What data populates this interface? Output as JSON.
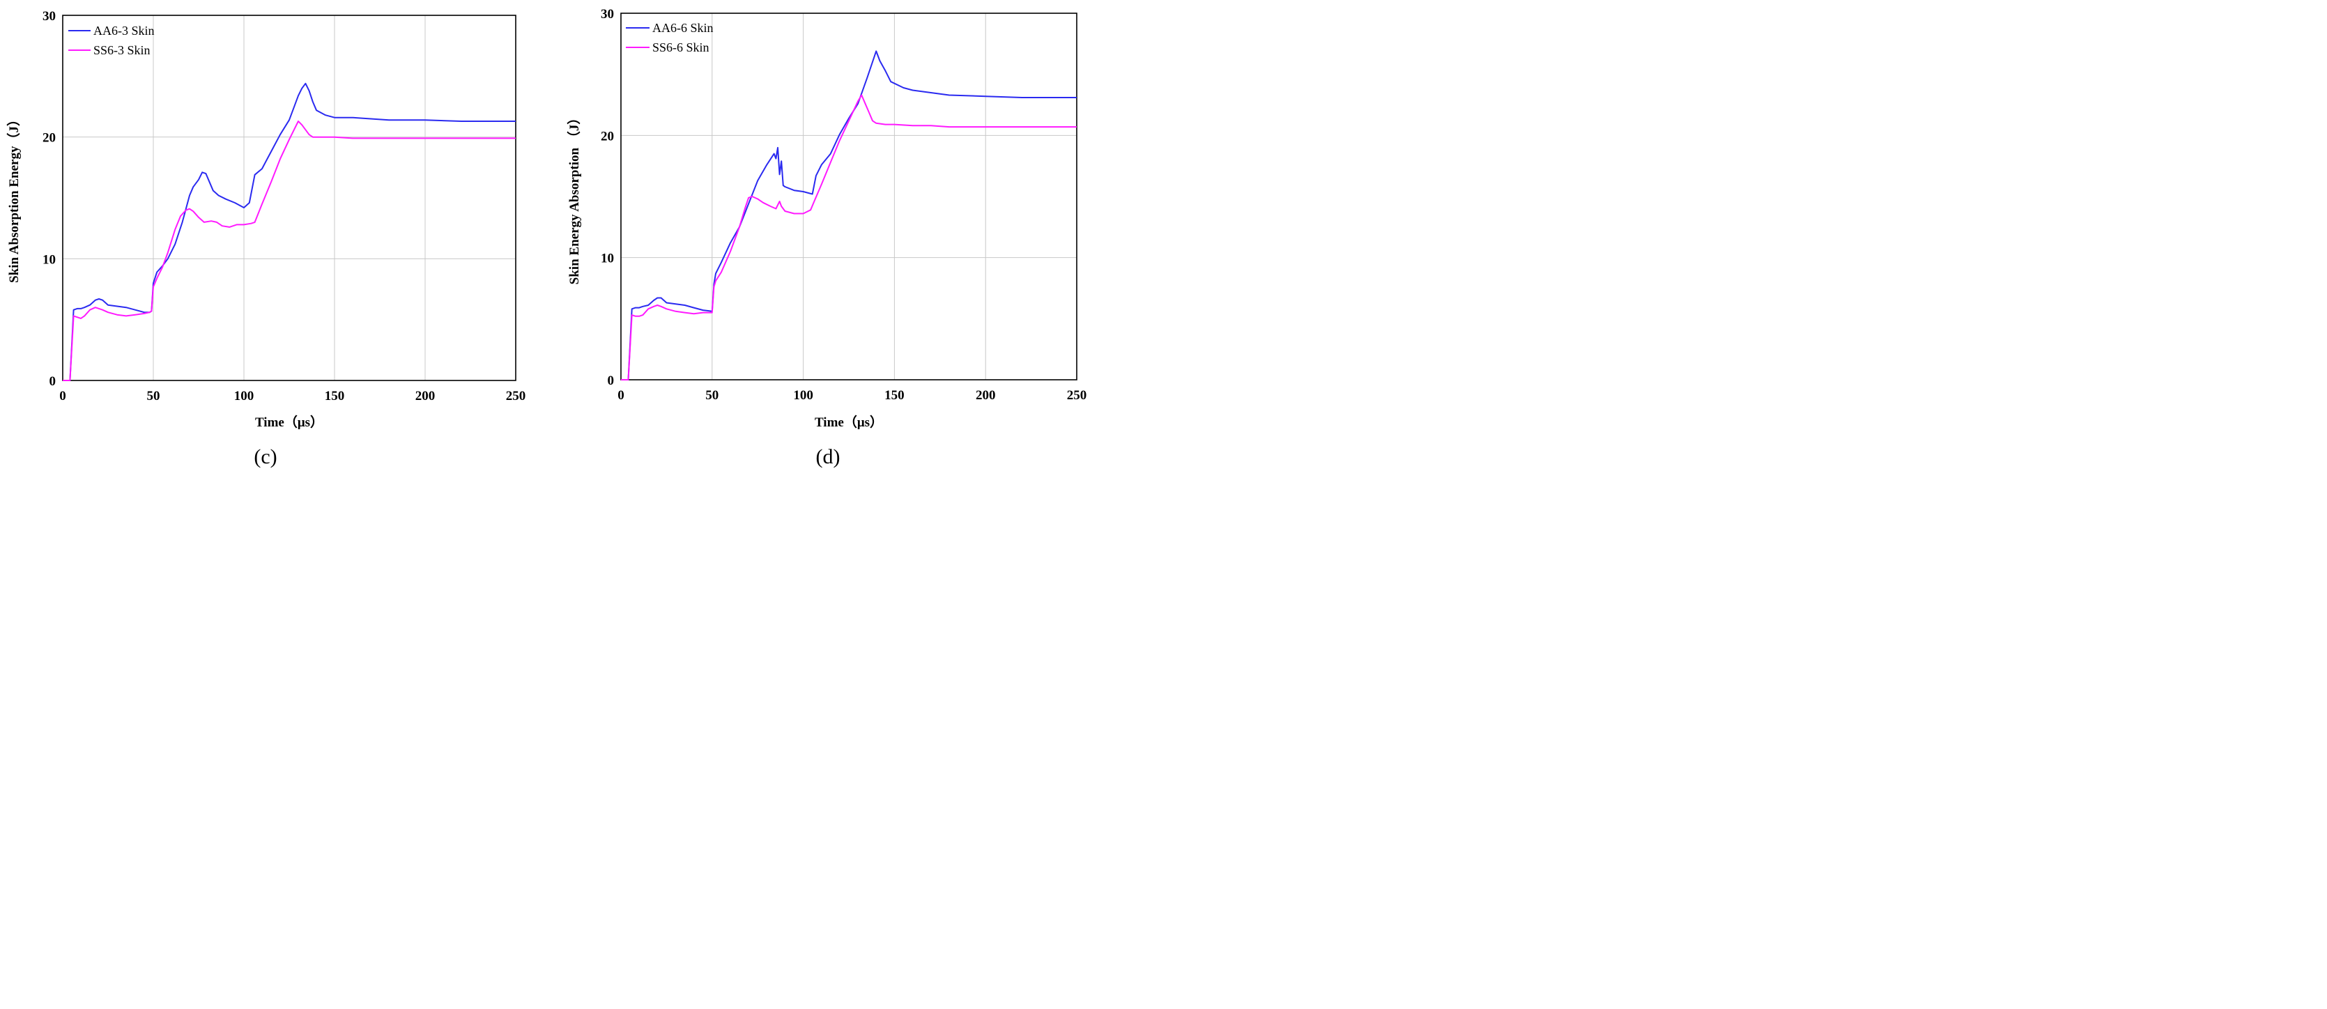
{
  "chart_data": [
    {
      "type": "line",
      "panel_label": "(c)",
      "xlabel": "Time（μs）",
      "ylabel": "Skin Absorption Energy（J）",
      "xlim": [
        0,
        250
      ],
      "ylim": [
        0,
        30
      ],
      "xticks": [
        "0",
        "50",
        "100",
        "150",
        "200",
        "250"
      ],
      "yticks": [
        "0",
        "10",
        "20",
        "30"
      ],
      "grid": true,
      "legend_position": "top-left",
      "series": [
        {
          "name": "AA6-3 Skin",
          "color": "#2a2af0",
          "x": [
            0,
            4,
            6,
            8,
            10,
            12,
            15,
            18,
            20,
            22,
            25,
            30,
            35,
            40,
            45,
            48,
            49,
            50,
            52,
            55,
            58,
            62,
            66,
            70,
            72,
            75,
            77,
            79,
            81,
            83,
            86,
            90,
            95,
            100,
            103,
            106,
            110,
            115,
            120,
            125,
            128,
            130,
            132,
            134,
            136,
            138,
            140,
            145,
            150,
            160,
            170,
            180,
            200,
            220,
            250
          ],
          "y": [
            0,
            0,
            5.8,
            5.9,
            5.9,
            6.0,
            6.2,
            6.6,
            6.7,
            6.6,
            6.2,
            6.1,
            6.0,
            5.8,
            5.6,
            5.6,
            5.7,
            8.0,
            8.9,
            9.4,
            10.0,
            11.2,
            13.0,
            15.2,
            15.9,
            16.5,
            17.1,
            17.0,
            16.3,
            15.6,
            15.2,
            14.9,
            14.6,
            14.2,
            14.6,
            16.9,
            17.4,
            18.8,
            20.2,
            21.4,
            22.6,
            23.4,
            24.0,
            24.4,
            23.8,
            22.9,
            22.2,
            21.8,
            21.6,
            21.6,
            21.5,
            21.4,
            21.4,
            21.3,
            21.3
          ]
        },
        {
          "name": "SS6-3 Skin",
          "color": "#ff1aff",
          "x": [
            0,
            4,
            6,
            8,
            10,
            12,
            15,
            18,
            20,
            22,
            25,
            30,
            35,
            40,
            45,
            48,
            49,
            50,
            52,
            55,
            58,
            62,
            65,
            68,
            70,
            72,
            75,
            78,
            82,
            85,
            88,
            92,
            96,
            100,
            104,
            106,
            110,
            115,
            120,
            125,
            128,
            130,
            132,
            134,
            136,
            138,
            140,
            145,
            150,
            160,
            170,
            180,
            200,
            220,
            250
          ],
          "y": [
            0,
            0,
            5.3,
            5.2,
            5.1,
            5.3,
            5.8,
            6.0,
            5.9,
            5.8,
            5.6,
            5.4,
            5.3,
            5.4,
            5.5,
            5.6,
            5.7,
            7.7,
            8.4,
            9.3,
            10.5,
            12.4,
            13.5,
            14.0,
            14.1,
            13.9,
            13.4,
            13.0,
            13.1,
            13.0,
            12.7,
            12.6,
            12.8,
            12.8,
            12.9,
            13.0,
            14.5,
            16.3,
            18.2,
            19.8,
            20.7,
            21.3,
            21.0,
            20.6,
            20.2,
            20.0,
            20.0,
            20.0,
            20.0,
            19.9,
            19.9,
            19.9,
            19.9,
            19.9,
            19.9
          ]
        }
      ]
    },
    {
      "type": "line",
      "panel_label": "(d)",
      "xlabel": "Time（μs）",
      "ylabel": "Skin Energy Absorption （J）",
      "xlim": [
        0,
        250
      ],
      "ylim": [
        0,
        30
      ],
      "xticks": [
        "0",
        "50",
        "100",
        "150",
        "200",
        "250"
      ],
      "yticks": [
        "0",
        "10",
        "20",
        "30"
      ],
      "grid": true,
      "legend_position": "top-left",
      "series": [
        {
          "name": "AA6-6 Skin",
          "color": "#2a2af0",
          "x": [
            0,
            4,
            6,
            8,
            10,
            12,
            15,
            18,
            20,
            22,
            25,
            30,
            35,
            40,
            45,
            50,
            51,
            52,
            55,
            60,
            65,
            70,
            75,
            80,
            84,
            85,
            86,
            87,
            88,
            89,
            90,
            95,
            100,
            105,
            107,
            110,
            115,
            120,
            125,
            130,
            135,
            140,
            142,
            145,
            148,
            155,
            160,
            170,
            180,
            200,
            220,
            250
          ],
          "y": [
            0,
            0,
            5.8,
            5.9,
            5.9,
            6.0,
            6.1,
            6.5,
            6.7,
            6.7,
            6.3,
            6.2,
            6.1,
            5.9,
            5.7,
            5.6,
            7.8,
            8.7,
            9.6,
            11.2,
            12.5,
            14.4,
            16.3,
            17.6,
            18.5,
            18.1,
            19.0,
            16.8,
            17.9,
            15.9,
            15.8,
            15.5,
            15.4,
            15.2,
            16.7,
            17.6,
            18.5,
            20.1,
            21.4,
            22.6,
            24.7,
            26.9,
            26.1,
            25.3,
            24.4,
            23.9,
            23.7,
            23.5,
            23.3,
            23.2,
            23.1,
            23.1
          ]
        },
        {
          "name": "SS6-6 Skin",
          "color": "#ff1aff",
          "x": [
            0,
            4,
            6,
            8,
            10,
            12,
            15,
            18,
            20,
            22,
            25,
            30,
            35,
            40,
            45,
            50,
            51,
            52,
            55,
            60,
            65,
            68,
            70,
            72,
            75,
            78,
            82,
            85,
            87,
            88,
            90,
            95,
            100,
            104,
            106,
            110,
            115,
            120,
            125,
            130,
            132,
            134,
            136,
            138,
            140,
            145,
            150,
            160,
            170,
            180,
            200,
            220,
            250
          ],
          "y": [
            0,
            0,
            5.3,
            5.2,
            5.2,
            5.3,
            5.8,
            6.0,
            6.1,
            6.0,
            5.8,
            5.6,
            5.5,
            5.4,
            5.5,
            5.5,
            7.6,
            8.1,
            8.8,
            10.5,
            12.5,
            14.0,
            14.9,
            15.0,
            14.8,
            14.5,
            14.2,
            14.0,
            14.6,
            14.2,
            13.8,
            13.6,
            13.6,
            13.9,
            14.6,
            16.0,
            17.8,
            19.6,
            21.2,
            22.8,
            23.3,
            22.6,
            21.9,
            21.2,
            21.0,
            20.9,
            20.9,
            20.8,
            20.8,
            20.7,
            20.7,
            20.7,
            20.7
          ]
        }
      ]
    }
  ]
}
